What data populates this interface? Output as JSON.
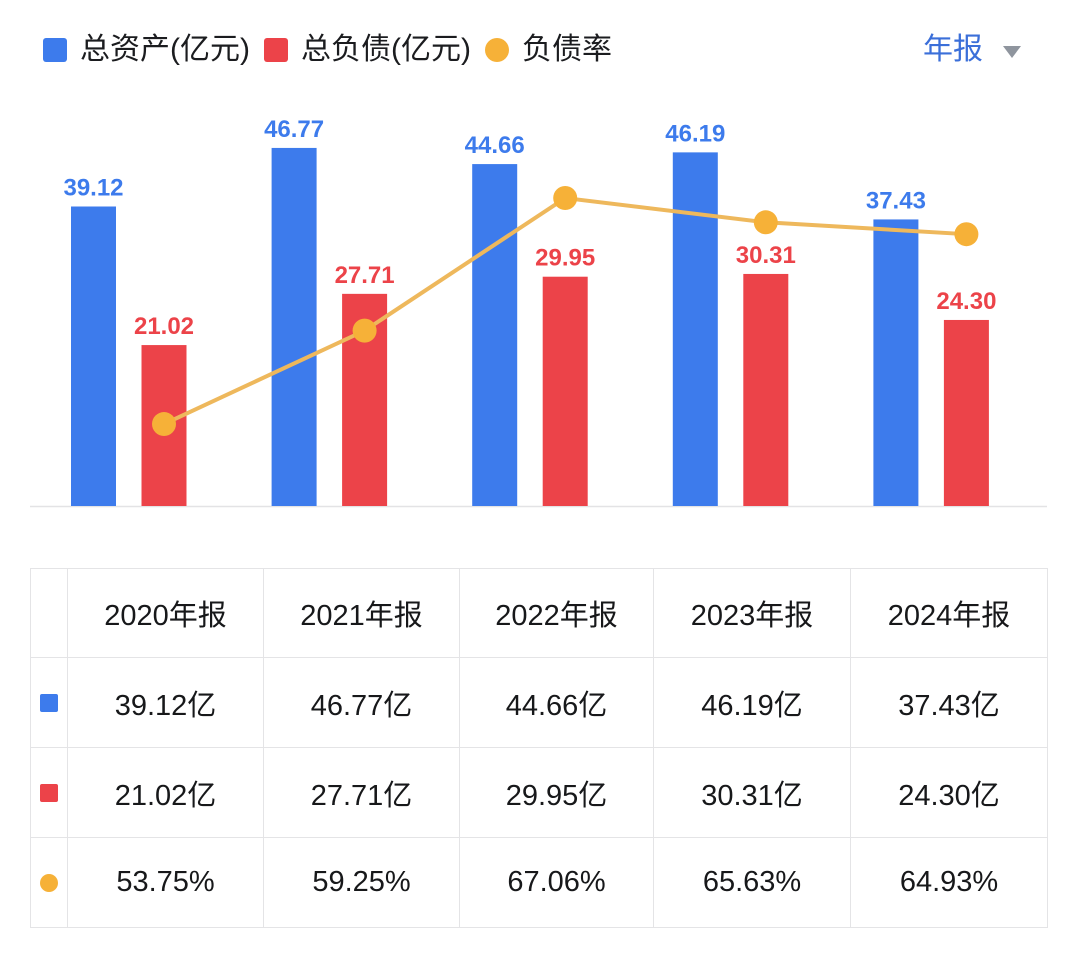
{
  "legend": {
    "items": [
      {
        "label": "总资产(亿元)",
        "color": "#3d7bec",
        "shape": "square"
      },
      {
        "label": "总负债(亿元)",
        "color": "#ec4349",
        "shape": "square"
      },
      {
        "label": "负债率",
        "color": "#f6b138",
        "shape": "circle"
      }
    ]
  },
  "period_selector": {
    "label": "年报",
    "caret_color": "#8f959e"
  },
  "chart_data": {
    "type": "bar",
    "subtype": "grouped-bars-with-line",
    "categories": [
      "2020年报",
      "2021年报",
      "2022年报",
      "2023年报",
      "2024年报"
    ],
    "series": [
      {
        "name": "总资产(亿元)",
        "type": "bar",
        "color": "#3d7bec",
        "values": [
          39.12,
          46.77,
          44.66,
          46.19,
          37.43
        ]
      },
      {
        "name": "总负债(亿元)",
        "type": "bar",
        "color": "#ec4349",
        "values": [
          21.02,
          27.71,
          29.95,
          30.31,
          24.3
        ]
      },
      {
        "name": "负债率",
        "type": "line",
        "color": "#f6b138",
        "line_color": "#eeb85c",
        "unit": "%",
        "values": [
          53.75,
          59.25,
          67.06,
          65.63,
          64.93
        ]
      }
    ],
    "title": "",
    "xlabel": "",
    "ylabel": "",
    "bar_axis_range": [
      0,
      53
    ],
    "line_axis_range_pct": [
      48,
      72
    ],
    "grid": false,
    "legend_position": "top-left",
    "value_labels_shown": true
  },
  "table": {
    "columns": [
      "2020年报",
      "2021年报",
      "2022年报",
      "2023年报",
      "2024年报"
    ],
    "rows": [
      {
        "icon": "square",
        "color": "#3d7bec",
        "cells": [
          "39.12亿",
          "46.77亿",
          "44.66亿",
          "46.19亿",
          "37.43亿"
        ]
      },
      {
        "icon": "square",
        "color": "#ec4349",
        "cells": [
          "21.02亿",
          "27.71亿",
          "29.95亿",
          "30.31亿",
          "24.30亿"
        ]
      },
      {
        "icon": "circle",
        "color": "#f6b138",
        "cells": [
          "53.75%",
          "59.25%",
          "67.06%",
          "65.63%",
          "64.93%"
        ]
      }
    ]
  }
}
